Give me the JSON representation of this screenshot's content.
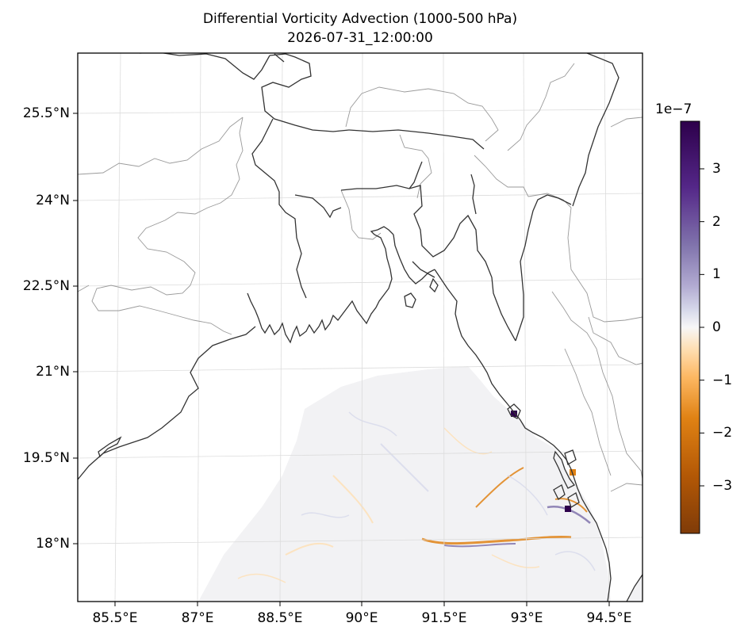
{
  "title": {
    "line1": "Differential Vorticity Advection (1000-500 hPa)",
    "line2": "2026-07-31_12:00:00"
  },
  "map": {
    "lat_ticks": [
      "25.5°N",
      "24°N",
      "22.5°N",
      "21°N",
      "19.5°N",
      "18°N"
    ],
    "lon_ticks": [
      "85.5°E",
      "87°E",
      "88.5°E",
      "90°E",
      "91.5°E",
      "93°E",
      "94.5°E"
    ],
    "extent": {
      "lon": [
        84.85,
        94.9
      ],
      "lat": [
        17.0,
        26.6
      ]
    },
    "colors": {
      "coastline": "#333333",
      "borders": "#999999",
      "gridlines": "#dddddd",
      "ocean_field_base": "#f2f2f4",
      "land": "#ffffff"
    }
  },
  "colorbar": {
    "exponent": "1e−7",
    "tick_labels": [
      "3",
      "2",
      "1",
      "0",
      "−1",
      "−2",
      "−3"
    ],
    "range": [
      -3.9,
      3.9
    ],
    "colormap": "PuOr",
    "colors": {
      "max": "#2d004b",
      "high": "#8073ac",
      "mid_high": "#d8daeb",
      "zero": "#f7f7f7",
      "mid_low": "#fee0b6",
      "low": "#e08214",
      "min": "#7f3b08"
    }
  }
}
